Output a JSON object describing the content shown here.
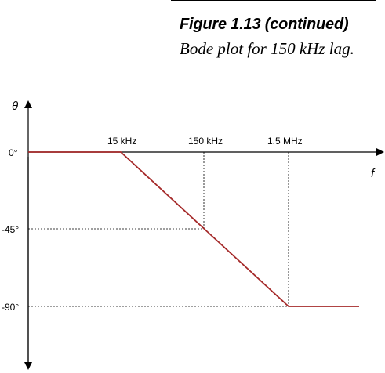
{
  "caption": {
    "title": "Figure 1.13 (continued)",
    "text": "Bode plot for 150 kHz lag."
  },
  "axes": {
    "y_label": "θ",
    "x_label": "f"
  },
  "ticks": {
    "y": [
      "0°",
      "-45°",
      "-90°"
    ],
    "x": [
      "15 kHz",
      "150 kHz",
      "1.5 MHz"
    ]
  },
  "colors": {
    "curve": "#a52a2a",
    "axis": "#000000",
    "guide": "#000000"
  }
}
